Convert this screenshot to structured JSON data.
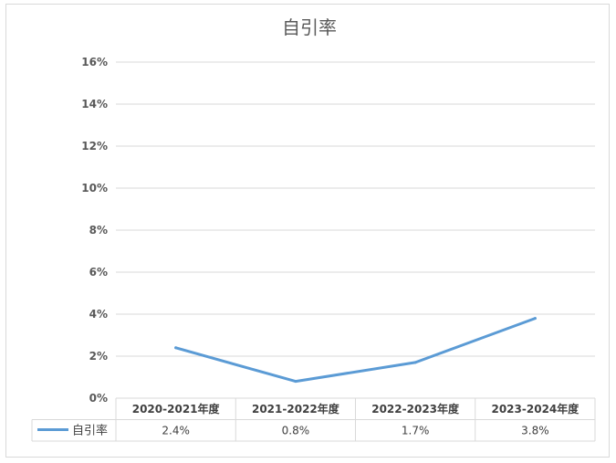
{
  "chart_data": {
    "type": "line",
    "title": "自引率",
    "categories": [
      "2020-2021年度",
      "2021-2022年度",
      "2022-2023年度",
      "2023-2024年度"
    ],
    "series": [
      {
        "name": "自引率",
        "values": [
          2.4,
          0.8,
          1.7,
          3.8
        ],
        "labels": [
          "2.4%",
          "0.8%",
          "1.7%",
          "3.8%"
        ],
        "color": "#5b9bd5"
      }
    ],
    "ylim": [
      0,
      16
    ],
    "yticks": [
      "0%",
      "2%",
      "4%",
      "6%",
      "8%",
      "10%",
      "12%",
      "14%",
      "16%"
    ],
    "grid": true,
    "legend": "data-table-left",
    "data_table": true,
    "gridline_color": "#d9d9d9",
    "axis_text_color": "#595959"
  }
}
